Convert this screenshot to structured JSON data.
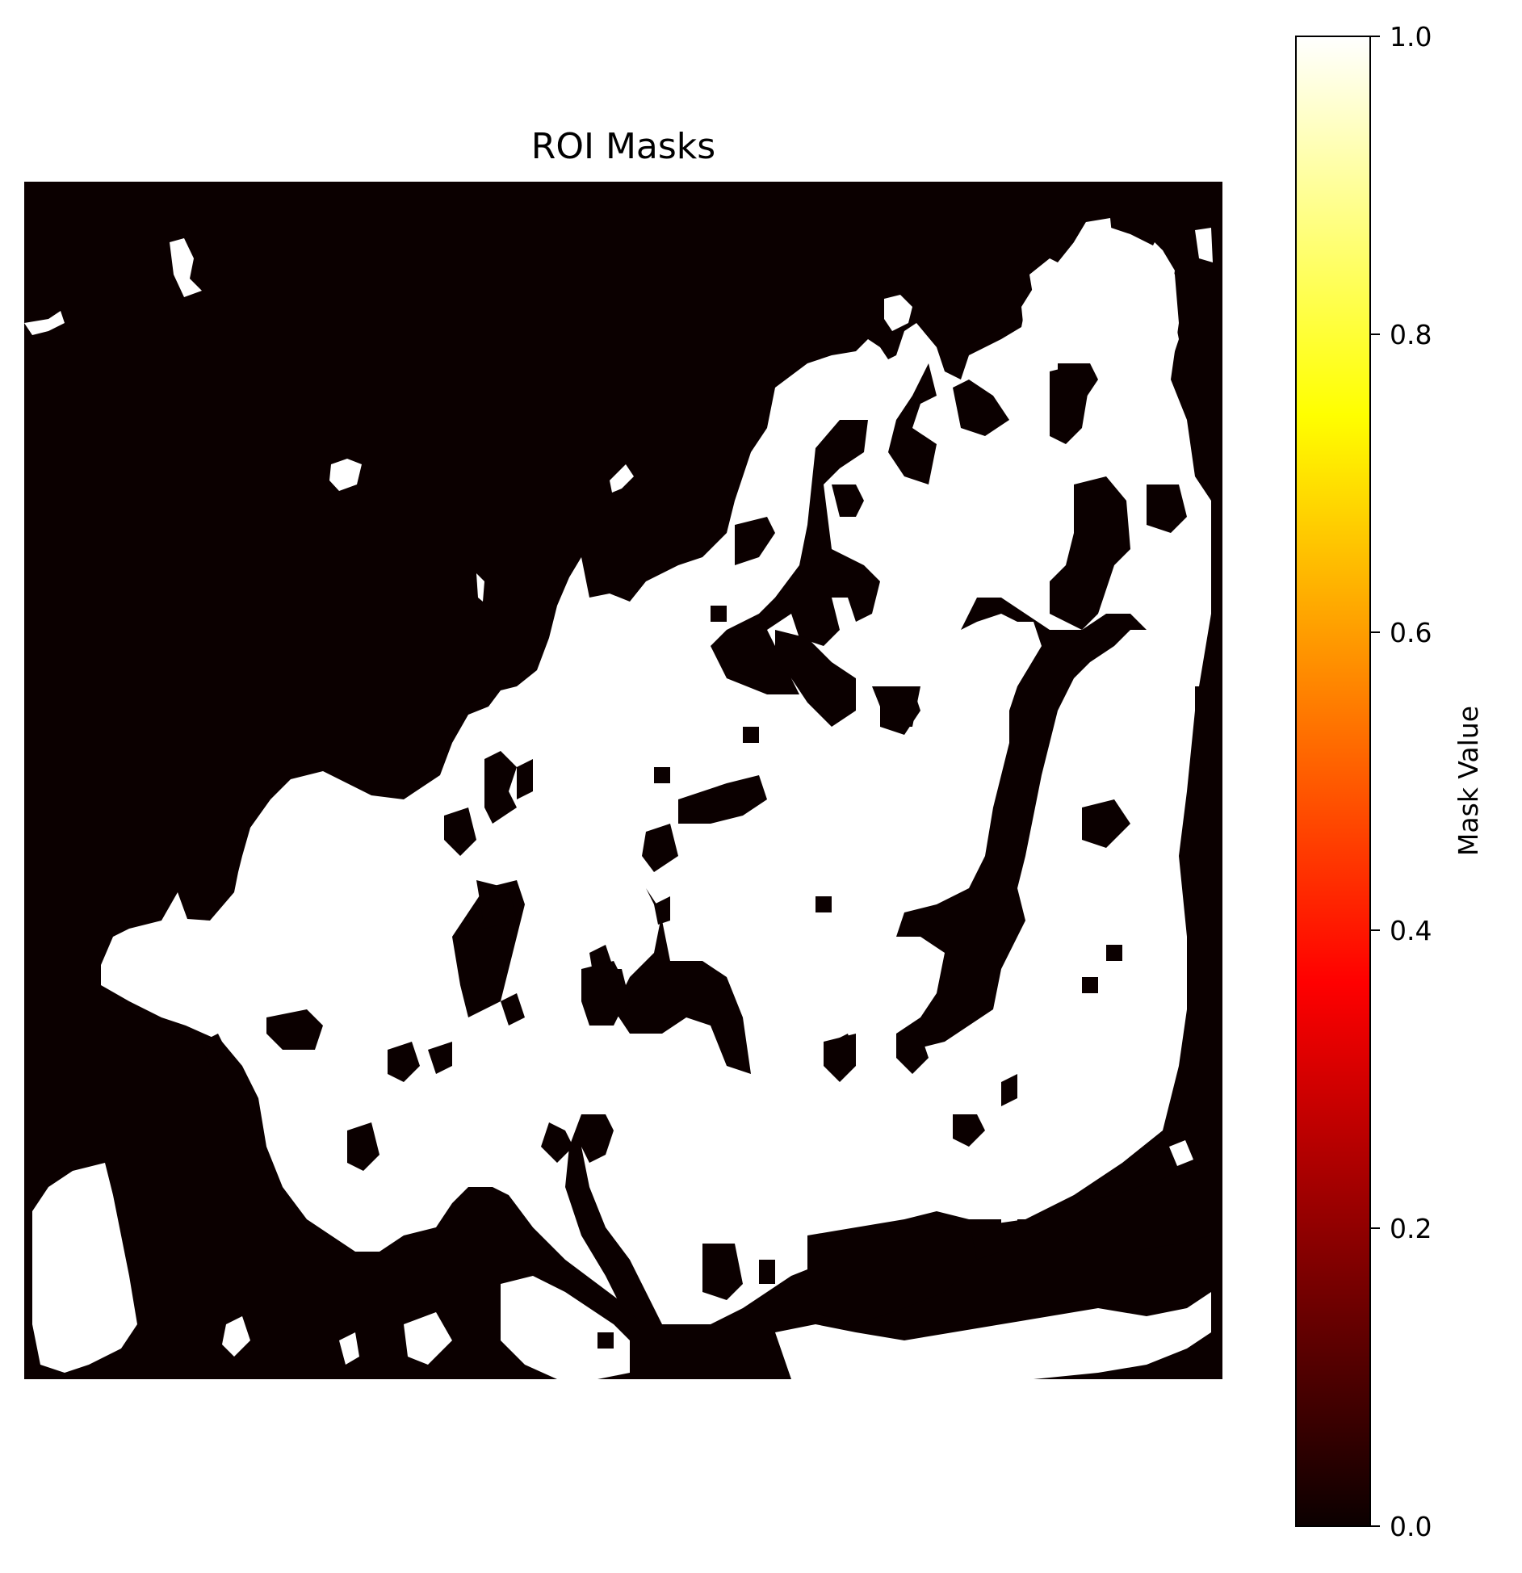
{
  "chart_data": {
    "type": "heatmap",
    "title": "ROI Masks",
    "xlabel": "",
    "ylabel": "",
    "axes_visible": false,
    "colormap": "hot",
    "colormap_stops": [
      "#0b0000",
      "#ff0000",
      "#ffff00",
      "#ffffff"
    ],
    "value_range": [
      0.0,
      1.0
    ],
    "values": "binary mask (0 = background, 1 = ROI)",
    "colorbar": {
      "label": "Mask Value",
      "ticks": [
        0.0,
        0.2,
        0.4,
        0.6,
        0.8,
        1.0
      ],
      "tick_labels": [
        "0.0",
        "0.2",
        "0.4",
        "0.6",
        "0.8",
        "1.0"
      ]
    }
  }
}
